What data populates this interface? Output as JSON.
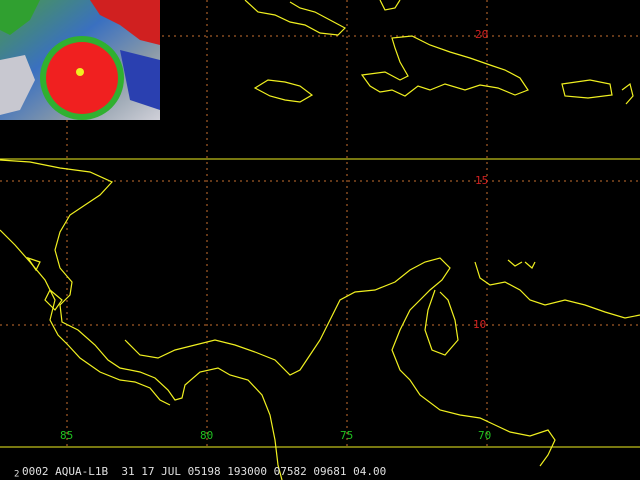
{
  "map": {
    "lat_labels": [
      "20",
      "15",
      "10"
    ],
    "lon_labels": [
      "85",
      "80",
      "75",
      "70"
    ],
    "status": {
      "frame": "2",
      "text": "0002 AQUA-L1B  31 17 JUL 05198 193000 07582 09681 04.00"
    }
  }
}
